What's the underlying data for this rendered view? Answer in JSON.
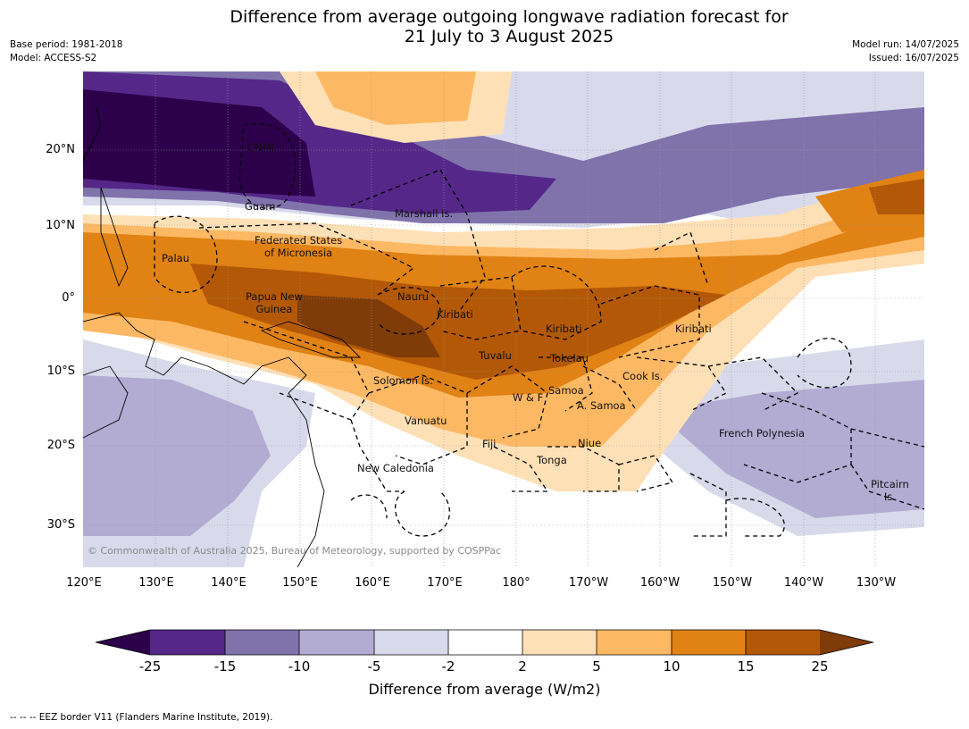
{
  "title_line1": "Difference from average outgoing longwave radiation forecast for",
  "title_line2": "21 July to 3 August 2025",
  "meta_left": [
    "Base period: 1981-2018",
    "Model: ACCESS-S2"
  ],
  "meta_right": [
    "Model run: 14/07/2025",
    "Issued: 16/07/2025"
  ],
  "lat_labels": [
    "20°N",
    "10°N",
    "0°",
    "10°S",
    "20°S",
    "30°S"
  ],
  "lon_labels": [
    "120°E",
    "130°E",
    "140°E",
    "150°E",
    "160°E",
    "170°E",
    "180°",
    "170°W",
    "160°W",
    "150°W",
    "140°W",
    "130°W"
  ],
  "places": {
    "cnmi": "CNMI",
    "guam": "Guam",
    "marshall": "Marshall Is.",
    "fsm_line1": "Federated States",
    "fsm_line2": "of Micronesia",
    "palau": "Palau",
    "png_line1": "Papua New",
    "png_line2": "Guinea",
    "nauru": "Nauru",
    "kiribati_west": "Kiribati",
    "kiribati_central": "Kiribati",
    "kiribati_east": "Kiribati",
    "tuvalu": "Tuvalu",
    "tokelau": "Tokelau",
    "cook": "Cook Is.",
    "solomon": "Solomon Is.",
    "samoa": "Samoa",
    "wf": "W & F",
    "asamoa": "A. Samoa",
    "vanuatu": "Vanuatu",
    "fiji": "Fiji",
    "niue": "Niue",
    "tonga": "Tonga",
    "fpoly": "French Polynesia",
    "newcal": "New Caledonia",
    "pitcairn_line1": "Pitcairn",
    "pitcairn_line2": "Is."
  },
  "copyright": "© Commonwealth of Australia 2025, Bureau of Meteorology, supported by COSPPac",
  "colorbar": {
    "ticks": [
      "-25",
      "-15",
      "-10",
      "-5",
      "-2",
      "2",
      "5",
      "10",
      "15",
      "25"
    ],
    "colors": [
      "#2d004b",
      "#542788",
      "#8073ac",
      "#b2abd2",
      "#d8daeb",
      "#ffffff",
      "#fee0b6",
      "#fdb863",
      "#e08214",
      "#b35806",
      "#7f3b08"
    ],
    "title": "Difference from average (W/m2)"
  },
  "footer": "--  --  -- EEZ border V11 (Flanders Marine Institute, 2019)."
}
